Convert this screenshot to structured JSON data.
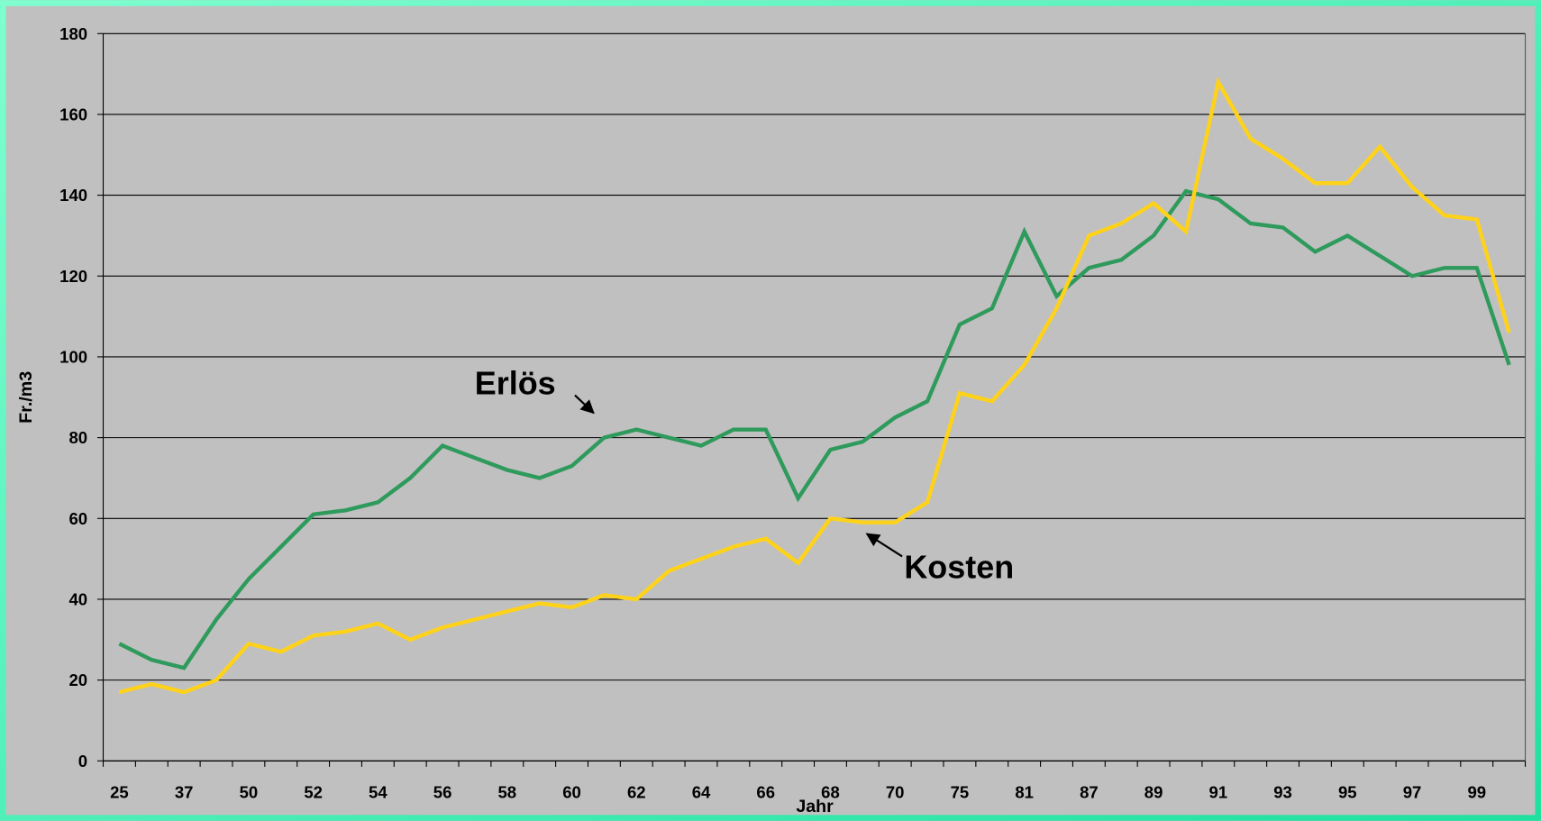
{
  "chart_data": {
    "type": "line",
    "y_label": "Fr./m3",
    "x_label": "Jahr",
    "categories": [
      "25",
      null,
      "37",
      null,
      "50",
      null,
      "52",
      null,
      "54",
      null,
      "56",
      null,
      "58",
      null,
      "60",
      null,
      "62",
      null,
      "64",
      null,
      "66",
      null,
      "68",
      null,
      "70",
      null,
      "75",
      null,
      "81",
      null,
      "87",
      null,
      "89",
      null,
      "91",
      null,
      "93",
      null,
      "95",
      null,
      "97",
      null,
      "99",
      null
    ],
    "series": [
      {
        "name": "Erlös",
        "color": "#2e9a5c",
        "values": [
          29,
          25,
          23,
          35,
          45,
          53,
          61,
          62,
          64,
          70,
          78,
          75,
          72,
          70,
          73,
          80,
          82,
          80,
          78,
          82,
          82,
          65,
          77,
          79,
          85,
          89,
          108,
          112,
          131,
          115,
          122,
          124,
          130,
          141,
          139,
          133,
          132,
          126,
          130,
          125,
          120,
          122,
          122,
          98
        ]
      },
      {
        "name": "Kosten",
        "color": "#ffd21a",
        "values": [
          17,
          19,
          17,
          20,
          29,
          27,
          31,
          32,
          34,
          30,
          33,
          35,
          37,
          39,
          38,
          41,
          40,
          47,
          50,
          53,
          55,
          49,
          60,
          59,
          59,
          64,
          91,
          89,
          98,
          112,
          130,
          133,
          138,
          131,
          168,
          154,
          149,
          143,
          143,
          152,
          142,
          135,
          134,
          106
        ]
      }
    ],
    "ylim": [
      0,
      180
    ],
    "yticks": [
      0,
      20,
      40,
      60,
      80,
      100,
      120,
      140,
      160,
      180
    ],
    "grid": true
  }
}
